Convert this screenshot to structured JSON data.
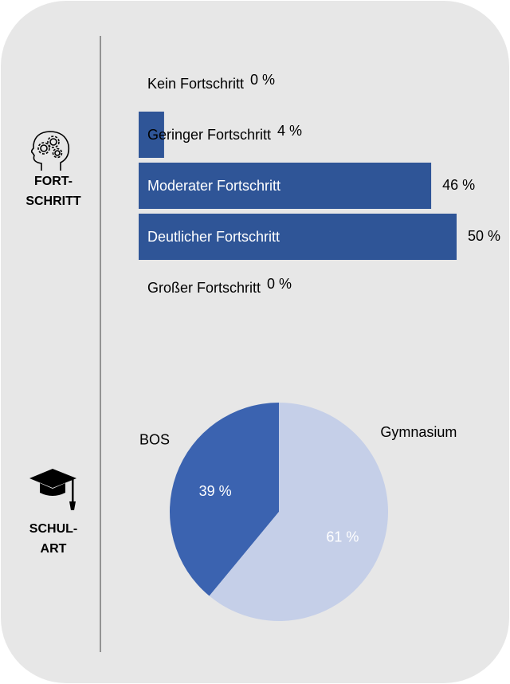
{
  "chart_data": [
    {
      "type": "bar",
      "label_lines": [
        "FORT-",
        "SCHRITT"
      ],
      "categories": [
        "Kein Fortschritt",
        "Geringer Fortschritt",
        "Moderater Fortschritt",
        "Deutlicher Fortschritt",
        "Großer Fortschritt"
      ],
      "values": [
        0,
        4,
        46,
        50,
        0
      ],
      "value_labels": [
        "0 %",
        "4 %",
        "46 %",
        "50 %",
        "0 %"
      ],
      "xlim": [
        0,
        50
      ],
      "color": "#2f5597"
    },
    {
      "type": "pie",
      "label_lines": [
        "SCHUL-",
        "ART"
      ],
      "categories": [
        "BOS",
        "Gymnasium"
      ],
      "values": [
        39,
        61
      ],
      "value_labels": [
        "39 %",
        "61 %"
      ],
      "colors": [
        "#3b63b0",
        "#c5cfe8"
      ]
    }
  ]
}
